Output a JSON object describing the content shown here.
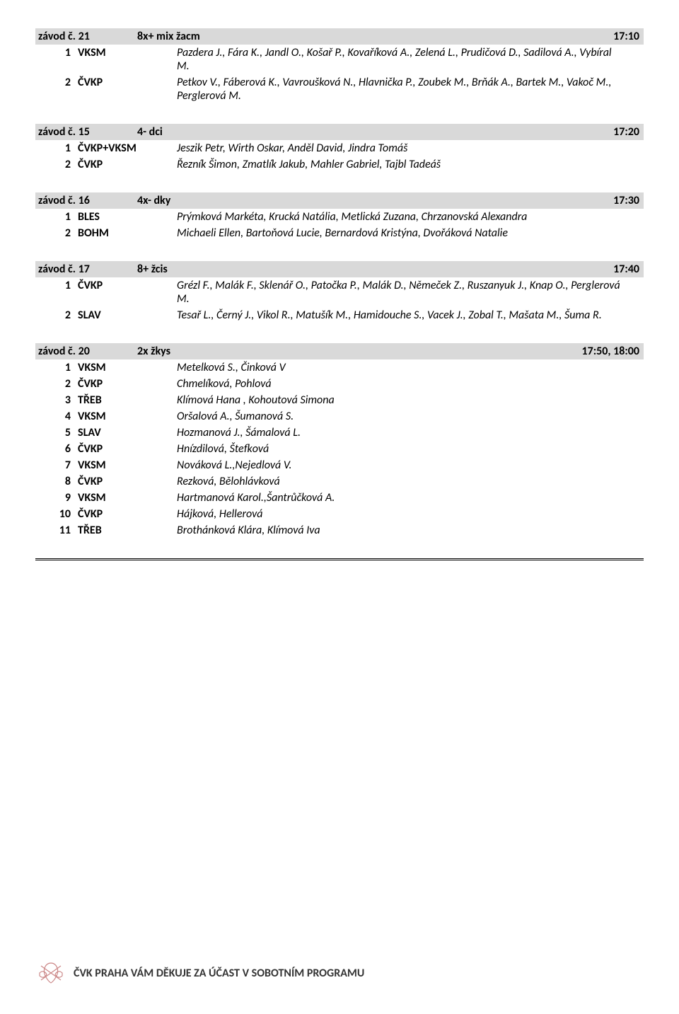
{
  "header_bg": "#d9d9d9",
  "text_color": "#000000",
  "races": [
    {
      "race": "závod č. 21",
      "event": "8x+ mix žacm",
      "time": "17:10",
      "entries": [
        {
          "lane": "1",
          "club": "VKSM",
          "crew": "Pazdera J., Fára K., Jandl O., Košař P., Kovaříková A., Zelená L., Prudičová D., Sadilová A., Vybíral M."
        },
        {
          "lane": "2",
          "club": "ČVKP",
          "crew": "Petkov V., Fáberová K., Vavroušková N., Hlavnička P., Zoubek M., Brňák A., Bartek M., Vakoč M., Perglerová M."
        }
      ]
    },
    {
      "race": "závod č. 15",
      "event": "4- dci",
      "time": "17:20",
      "entries": [
        {
          "lane": "1",
          "club": "ČVKP+VKSM",
          "crew": "Jeszik Petr, Wirth Oskar, Anděl David, Jindra Tomáš"
        },
        {
          "lane": "2",
          "club": "ČVKP",
          "crew": "Řezník Šimon, Zmatlík Jakub, Mahler Gabriel, Tajbl Tadeáš"
        }
      ]
    },
    {
      "race": "závod č. 16",
      "event": "4x- dky",
      "time": "17:30",
      "entries": [
        {
          "lane": "1",
          "club": "BLES",
          "crew": "Prýmková Markéta, Krucká Natália, Metlická Zuzana, Chrzanovská Alexandra"
        },
        {
          "lane": "2",
          "club": "BOHM",
          "crew": "Michaeli Ellen, Bartoňová Lucie, Bernardová Kristýna, Dvořáková Natalie"
        }
      ]
    },
    {
      "race": "závod č. 17",
      "event": "8+ žcis",
      "time": "17:40",
      "entries": [
        {
          "lane": "1",
          "club": "ČVKP",
          "crew": "Grézl F., Malák F., Sklenář O., Patočka P., Malák D., Němeček Z., Ruszanyuk J., Knap O., Perglerová M."
        },
        {
          "lane": "2",
          "club": "SLAV",
          "crew": "Tesař L., Černý J., Vikol R., Matušík M., Hamidouche S., Vacek J., Zobal T., Mašata M., Šuma R."
        }
      ]
    },
    {
      "race": "závod č. 20",
      "event": "2x žkys",
      "time": "17:50, 18:00",
      "entries": [
        {
          "lane": "1",
          "club": "VKSM",
          "crew": "Metelková S., Činková V"
        },
        {
          "lane": "2",
          "club": "ČVKP",
          "crew": "Chmelíková, Pohlová"
        },
        {
          "lane": "3",
          "club": "TŘEB",
          "crew": "Klímová Hana , Kohoutová Simona"
        },
        {
          "lane": "4",
          "club": "VKSM",
          "crew": "Oršalová A., Šumanová S."
        },
        {
          "lane": "5",
          "club": "SLAV",
          "crew": "Hozmanová J., Šámalová L."
        },
        {
          "lane": "6",
          "club": "ČVKP",
          "crew": "Hnízdilová, Štefková"
        },
        {
          "lane": "7",
          "club": "VKSM",
          "crew": "Nováková L.,Nejedlová V."
        },
        {
          "lane": "8",
          "club": "ČVKP",
          "crew": "Rezková, Bělohlávková"
        },
        {
          "lane": "9",
          "club": "VKSM",
          "crew": "Hartmanová Karol.,Šantrůčková A."
        },
        {
          "lane": "10",
          "club": "ČVKP",
          "crew": "Hájková, Hellerová"
        },
        {
          "lane": "11",
          "club": "TŘEB",
          "crew": "Brothánková Klára, Klímová Iva"
        }
      ]
    }
  ],
  "footer": {
    "text": "ČVK PRAHA VÁM DĚKUJE ZA ÚČAST V SOBOTNÍM PROGRAMU",
    "logo_stroke": "#cc6666"
  }
}
